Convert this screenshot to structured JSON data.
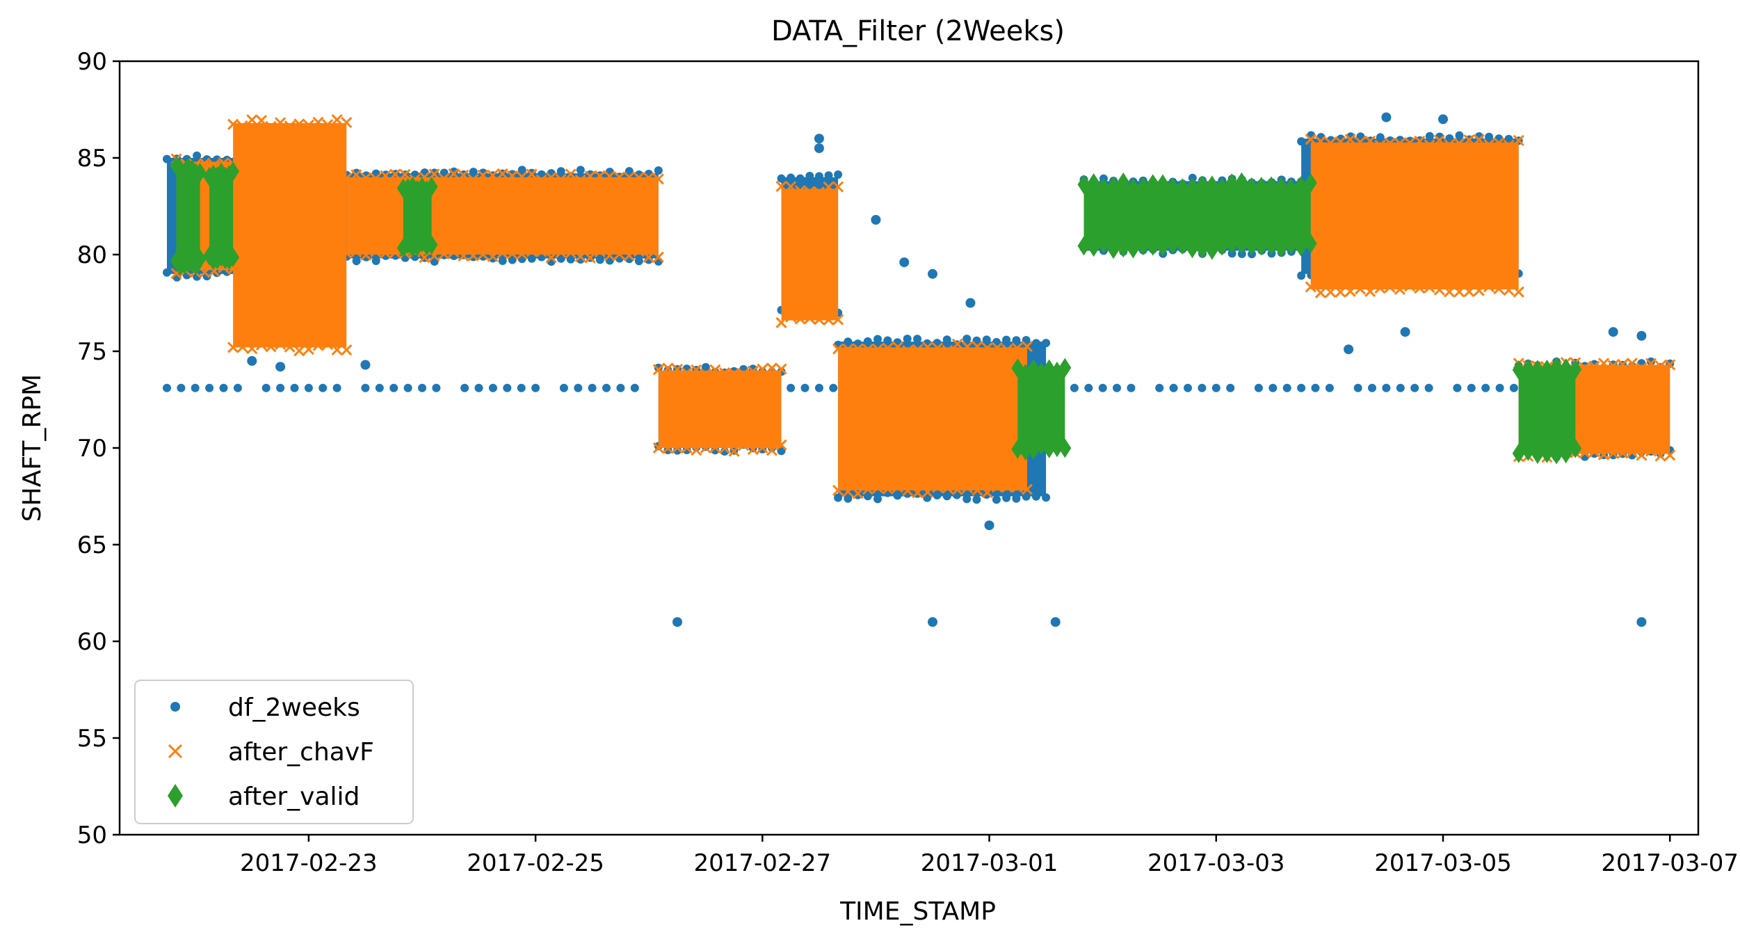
{
  "chart_data": {
    "type": "scatter",
    "title": "DATA_Filter (2Weeks)",
    "xlabel": "TIME_STAMP",
    "ylabel": "SHAFT_RPM",
    "xlim": [
      "2017-02-21T08:00",
      "2017-03-07T06:00"
    ],
    "ylim": [
      50,
      90
    ],
    "x_ticks": [
      "2017-02-23",
      "2017-02-25",
      "2017-02-27",
      "2017-03-01",
      "2017-03-03",
      "2017-03-05",
      "2017-03-07"
    ],
    "y_ticks": [
      50,
      55,
      60,
      65,
      70,
      75,
      80,
      85,
      90
    ],
    "legend_position": "lower-left",
    "series": [
      {
        "name": "df_2weeks",
        "marker": "circle",
        "color": "#1f77b4",
        "bands": [
          {
            "start": "2017-02-21T18:00",
            "end": "2017-02-23T06:00",
            "center": 82.0,
            "half_width": 3.0
          },
          {
            "start": "2017-02-23T06:00",
            "end": "2017-02-26T02:00",
            "center": 82.0,
            "half_width": 2.2
          },
          {
            "start": "2017-02-26T02:00",
            "end": "2017-02-27T04:00",
            "center": 72.0,
            "half_width": 2.0
          },
          {
            "start": "2017-02-27T04:00",
            "end": "2017-02-27T16:00",
            "center": 80.5,
            "half_width": 3.5
          },
          {
            "start": "2017-02-27T16:00",
            "end": "2017-03-01T12:00",
            "center": 71.5,
            "half_width": 4.0
          },
          {
            "start": "2017-03-01T20:00",
            "end": "2017-03-03T18:00",
            "center": 82.0,
            "half_width": 1.8
          },
          {
            "start": "2017-03-03T18:00",
            "end": "2017-03-05T16:00",
            "center": 82.5,
            "half_width": 3.5
          },
          {
            "start": "2017-03-05T16:00",
            "end": "2017-03-07T00:00",
            "center": 72.0,
            "half_width": 2.3
          }
        ],
        "baseline": {
          "y": 73.1,
          "start": "2017-02-21T18:00",
          "end": "2017-03-05T16:00"
        },
        "points": [
          {
            "x": "2017-02-26T06:00",
            "y": 61
          },
          {
            "x": "2017-02-28T12:00",
            "y": 61
          },
          {
            "x": "2017-03-01T14:00",
            "y": 61
          },
          {
            "x": "2017-03-06T18:00",
            "y": 61
          },
          {
            "x": "2017-02-28T00:00",
            "y": 81.8
          },
          {
            "x": "2017-02-27T12:00",
            "y": 86.0
          },
          {
            "x": "2017-02-27T12:00",
            "y": 85.5
          },
          {
            "x": "2017-02-28T12:00",
            "y": 79.0
          },
          {
            "x": "2017-02-28T06:00",
            "y": 79.6
          },
          {
            "x": "2017-02-28T20:00",
            "y": 77.5
          },
          {
            "x": "2017-03-01T00:00",
            "y": 66.0
          },
          {
            "x": "2017-03-04T12:00",
            "y": 87.1
          },
          {
            "x": "2017-03-05T00:00",
            "y": 87.0
          },
          {
            "x": "2017-03-04T16:00",
            "y": 76.0
          },
          {
            "x": "2017-03-04T04:00",
            "y": 75.1
          },
          {
            "x": "2017-03-06T12:00",
            "y": 76.0
          },
          {
            "x": "2017-03-06T18:00",
            "y": 75.8
          },
          {
            "x": "2017-02-22T12:00",
            "y": 74.5
          },
          {
            "x": "2017-02-22T18:00",
            "y": 74.2
          },
          {
            "x": "2017-02-23T12:00",
            "y": 74.3
          }
        ]
      },
      {
        "name": "after_chavF",
        "marker": "x",
        "color": "#ff7f0e",
        "bands": [
          {
            "start": "2017-02-21T20:00",
            "end": "2017-02-22T08:00",
            "center": 82.0,
            "half_width": 2.8
          },
          {
            "start": "2017-02-22T08:00",
            "end": "2017-02-23T08:00",
            "center": 81.0,
            "half_width": 5.8
          },
          {
            "start": "2017-02-23T08:00",
            "end": "2017-02-26T02:00",
            "center": 82.0,
            "half_width": 2.0
          },
          {
            "start": "2017-02-26T02:00",
            "end": "2017-02-27T04:00",
            "center": 72.0,
            "half_width": 2.0
          },
          {
            "start": "2017-02-27T04:00",
            "end": "2017-02-27T16:00",
            "center": 80.0,
            "half_width": 3.4
          },
          {
            "start": "2017-02-27T16:00",
            "end": "2017-03-01T08:00",
            "center": 71.5,
            "half_width": 3.7
          },
          {
            "start": "2017-03-03T20:00",
            "end": "2017-03-05T16:00",
            "center": 82.0,
            "half_width": 3.8
          },
          {
            "start": "2017-03-05T16:00",
            "end": "2017-03-07T00:00",
            "center": 72.0,
            "half_width": 2.3
          }
        ]
      },
      {
        "name": "after_valid",
        "marker": "diamond",
        "color": "#2ca02c",
        "bands": [
          {
            "start": "2017-02-21T20:00",
            "end": "2017-02-22T01:00",
            "center": 82.0,
            "half_width": 2.4
          },
          {
            "start": "2017-02-22T03:00",
            "end": "2017-02-22T08:00",
            "center": 82.0,
            "half_width": 2.2
          },
          {
            "start": "2017-02-23T20:00",
            "end": "2017-02-24T02:00",
            "center": 82.0,
            "half_width": 1.5
          },
          {
            "start": "2017-03-01T06:00",
            "end": "2017-03-01T16:00",
            "center": 72.0,
            "half_width": 2.0
          },
          {
            "start": "2017-03-01T20:00",
            "end": "2017-03-03T20:00",
            "center": 82.0,
            "half_width": 1.6
          },
          {
            "start": "2017-03-05T16:00",
            "end": "2017-03-06T04:00",
            "center": 72.0,
            "half_width": 2.2
          }
        ]
      }
    ]
  }
}
